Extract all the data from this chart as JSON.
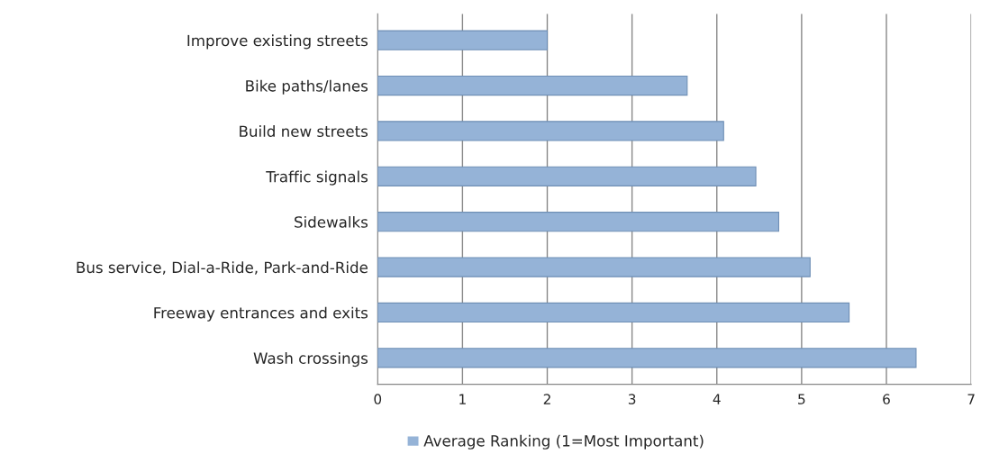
{
  "chart_data": {
    "type": "bar",
    "orientation": "horizontal",
    "categories": [
      "Improve existing streets",
      "Bike paths/lanes",
      "Build new streets",
      "Traffic signals",
      "Sidewalks",
      "Bus service, Dial-a-Ride, Park-and-Ride",
      "Freeway entrances and exits",
      "Wash crossings"
    ],
    "series": [
      {
        "name": "Average Ranking (1=Most Important)",
        "color": "#95b3d7",
        "values": [
          2.0,
          3.65,
          4.08,
          4.46,
          4.73,
          5.1,
          5.56,
          6.35
        ]
      }
    ],
    "xlim": [
      0,
      7
    ],
    "xticks": [
      0,
      1,
      2,
      3,
      4,
      5,
      6,
      7
    ],
    "grid": "x",
    "legend": "bottom"
  }
}
